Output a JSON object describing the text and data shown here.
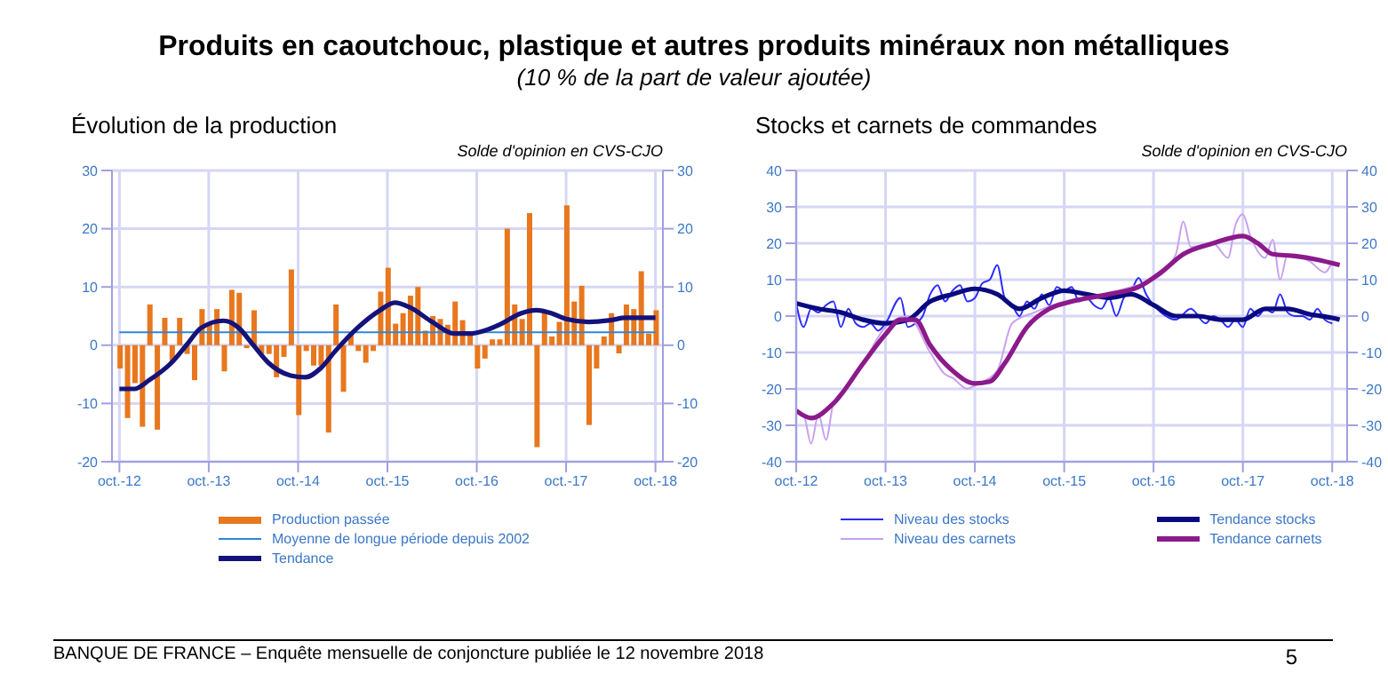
{
  "chart_data": [
    {
      "type": "other",
      "title": "Produits en caoutchouc, plastique et autres produits minéraux non métalliques",
      "subtitle": "(10 % de la part de valeur ajoutée)",
      "annotations": [
        "BANQUE DE FRANCE –  Enquête mensuelle de conjoncture publiée le 12 novembre 2018",
        "5"
      ]
    },
    {
      "type": "bar",
      "title": "Évolution de la production",
      "subtitle": "Solde d'opinion en CVS-CJO",
      "grid": true,
      "legend": "bottom",
      "marker": "none",
      "x": [
        "2012-10",
        "2012-11",
        "2012-12",
        "2013-01",
        "2013-02",
        "2013-03",
        "2013-04",
        "2013-05",
        "2013-06",
        "2013-07",
        "2013-08",
        "2013-09",
        "2013-10",
        "2013-11",
        "2013-12",
        "2014-01",
        "2014-02",
        "2014-03",
        "2014-04",
        "2014-05",
        "2014-06",
        "2014-07",
        "2014-08",
        "2014-09",
        "2014-10",
        "2014-11",
        "2014-12",
        "2015-01",
        "2015-02",
        "2015-03",
        "2015-04",
        "2015-05",
        "2015-06",
        "2015-07",
        "2015-08",
        "2015-09",
        "2015-10",
        "2015-11",
        "2015-12",
        "2016-01",
        "2016-02",
        "2016-03",
        "2016-04",
        "2016-05",
        "2016-06",
        "2016-07",
        "2016-08",
        "2016-09",
        "2016-10",
        "2016-11",
        "2016-12",
        "2017-01",
        "2017-02",
        "2017-03",
        "2017-04",
        "2017-05",
        "2017-06",
        "2017-07",
        "2017-08",
        "2017-09",
        "2017-10",
        "2017-11",
        "2017-12",
        "2018-01",
        "2018-02",
        "2018-03",
        "2018-04",
        "2018-05",
        "2018-06",
        "2018-07",
        "2018-08",
        "2018-09",
        "2018-10"
      ],
      "xlim": [
        "2012-09",
        "2018-11"
      ],
      "xticks": [
        {
          "value": "2012-10",
          "label": "oct.-12"
        },
        {
          "value": "2013-10",
          "label": "oct.-13"
        },
        {
          "value": "2014-10",
          "label": "oct.-14"
        },
        {
          "value": "2015-10",
          "label": "oct.-15"
        },
        {
          "value": "2016-10",
          "label": "oct.-16"
        },
        {
          "value": "2017-10",
          "label": "oct.-17"
        },
        {
          "value": "2018-10",
          "label": "oct.-18"
        }
      ],
      "ylim": [
        -20,
        30
      ],
      "yticks": [
        -20,
        -10,
        0,
        10,
        20,
        30
      ],
      "y2lim": [
        -20,
        30
      ],
      "y2ticks": [
        -20,
        -10,
        0,
        10,
        20,
        30
      ],
      "series": [
        {
          "name": "Production passée",
          "type": "bar",
          "color": "#e8771e",
          "values": [
            -4,
            -12.5,
            -6.5,
            -14,
            7,
            -14.5,
            4.7,
            -3,
            4.7,
            -1.5,
            -6,
            6.2,
            3.5,
            6.2,
            -4.5,
            9.5,
            9,
            -0.5,
            6,
            -1.5,
            -1.5,
            -5.5,
            -2,
            13,
            -12,
            -1,
            -3.5,
            -3.5,
            -15,
            7,
            -8,
            2,
            -1,
            -3,
            -1,
            9.2,
            13.3,
            3.7,
            5.5,
            8.5,
            10,
            2.5,
            5,
            4.5,
            3.5,
            7.5,
            4.3,
            2,
            -4,
            -2.3,
            1,
            1,
            20,
            7,
            4.5,
            22.7,
            -17.5,
            6,
            1.5,
            4,
            24,
            7.5,
            10.2,
            -13.7,
            -4,
            1.5,
            5.5,
            -1.4,
            7,
            6.2,
            12.7,
            2,
            6
          ]
        },
        {
          "name": "Moyenne de longue période depuis 2002",
          "type": "line",
          "color": "#2f86d6",
          "x": [
            "2012-10",
            "2018-10"
          ],
          "values": [
            2.2,
            2.2
          ]
        },
        {
          "name": "Tendance",
          "type": "line",
          "color": "#14137a",
          "x": [
            "2012-10",
            "2012-12",
            "2013-02",
            "2013-05",
            "2013-07",
            "2013-09",
            "2013-12",
            "2014-02",
            "2014-04",
            "2014-06",
            "2014-09",
            "2014-11",
            "2015-01",
            "2015-03",
            "2015-06",
            "2015-09",
            "2015-11",
            "2016-01",
            "2016-04",
            "2016-07",
            "2016-09",
            "2016-11",
            "2017-01",
            "2017-04",
            "2017-06",
            "2017-08",
            "2017-10",
            "2018-01",
            "2018-04",
            "2018-06",
            "2018-10"
          ],
          "values": [
            -7.5,
            -7.5,
            -6,
            -3,
            0,
            3,
            4.2,
            3,
            0,
            -3,
            -5.2,
            -5.5,
            -4,
            -1,
            3,
            6,
            7.3,
            6.5,
            4,
            2,
            2,
            2.5,
            3.5,
            5.5,
            6,
            5.5,
            4.5,
            4,
            4.3,
            4.7,
            4.7
          ]
        }
      ]
    },
    {
      "type": "line",
      "title": "Stocks et carnets de commandes",
      "subtitle": "Solde d'opinion en CVS-CJO",
      "grid": true,
      "legend": "bottom",
      "marker": "none",
      "xlim": [
        "2012-10",
        "2018-12"
      ],
      "xticks": [
        {
          "value": "2012-10",
          "label": "oct.-12"
        },
        {
          "value": "2013-10",
          "label": "oct.-13"
        },
        {
          "value": "2014-10",
          "label": "oct.-14"
        },
        {
          "value": "2015-10",
          "label": "oct.-15"
        },
        {
          "value": "2016-10",
          "label": "oct.-16"
        },
        {
          "value": "2017-10",
          "label": "oct.-17"
        },
        {
          "value": "2018-10",
          "label": "oct.-18"
        }
      ],
      "ylim": [
        -40,
        40
      ],
      "yticks": [
        -40,
        -30,
        -20,
        -10,
        0,
        10,
        20,
        30,
        40
      ],
      "y2lim": [
        -40,
        40
      ],
      "y2ticks": [
        -40,
        -30,
        -20,
        -10,
        0,
        10,
        20,
        30,
        40
      ],
      "series": [
        {
          "name": "Niveau des stocks",
          "color": "#2b2bff",
          "x": [
            "2012-10",
            "2012-11",
            "2012-12",
            "2013-01",
            "2013-02",
            "2013-03",
            "2013-04",
            "2013-05",
            "2013-06",
            "2013-07",
            "2013-08",
            "2013-09",
            "2013-10",
            "2013-12",
            "2014-01",
            "2014-02",
            "2014-03",
            "2014-04",
            "2014-05",
            "2014-06",
            "2014-07",
            "2014-08",
            "2014-09",
            "2014-10",
            "2014-11",
            "2014-12",
            "2015-01",
            "2015-02",
            "2015-03",
            "2015-04",
            "2015-05",
            "2015-06",
            "2015-07",
            "2015-08",
            "2015-09",
            "2015-10",
            "2015-11",
            "2015-12",
            "2016-01",
            "2016-02",
            "2016-03",
            "2016-04",
            "2016-05",
            "2016-06",
            "2016-07",
            "2016-08",
            "2016-09",
            "2016-10",
            "2016-11",
            "2017-01",
            "2017-03",
            "2017-05",
            "2017-06",
            "2017-07",
            "2017-08",
            "2017-09",
            "2017-10",
            "2017-11",
            "2017-12",
            "2018-01",
            "2018-02",
            "2018-03",
            "2018-04",
            "2018-05",
            "2018-06",
            "2018-07",
            "2018-08",
            "2018-09",
            "2018-10"
          ],
          "values": [
            3.5,
            -3,
            2,
            1,
            3,
            4,
            -3,
            2,
            -2,
            -3,
            -2,
            -4,
            -2,
            5,
            -3,
            -2,
            0,
            6,
            8.5,
            4,
            7,
            8.5,
            4,
            5,
            9,
            10,
            14,
            5,
            3,
            0,
            4,
            2,
            6,
            3,
            8,
            7,
            8,
            4,
            5,
            3,
            2,
            5,
            0,
            5,
            7,
            10.5,
            6,
            3,
            1,
            -1,
            2,
            -2,
            0,
            -1,
            -3,
            -1,
            -3,
            2,
            0,
            2,
            1,
            6,
            1,
            0,
            0,
            -1,
            2,
            -1,
            -2
          ]
        },
        {
          "name": "Niveau des carnets",
          "color": "#c9a0f0",
          "x": [
            "2012-10",
            "2012-11",
            "2012-12",
            "2013-01",
            "2013-02",
            "2013-03",
            "2013-05",
            "2013-07",
            "2013-10",
            "2014-01",
            "2014-04",
            "2014-06",
            "2014-07",
            "2014-09",
            "2014-10",
            "2015-01",
            "2015-03",
            "2015-06",
            "2015-10",
            "2016-01",
            "2016-07",
            "2016-10",
            "2017-01",
            "2017-02",
            "2017-03",
            "2017-06",
            "2017-08",
            "2017-09",
            "2017-10",
            "2017-11",
            "2018-01",
            "2018-02",
            "2018-03",
            "2018-04",
            "2018-07",
            "2018-09",
            "2018-10"
          ],
          "values": [
            -26,
            -27,
            -35,
            -27,
            -34,
            -24,
            -19,
            -13,
            -3,
            0,
            -10,
            -16,
            -17,
            -20,
            -19,
            -15,
            -2,
            1,
            4,
            5,
            8,
            10,
            17,
            26,
            19,
            20,
            16,
            25,
            28,
            22,
            16,
            21,
            10,
            17,
            15,
            12,
            15
          ]
        },
        {
          "name": "Tendance stocks",
          "color": "#0a0a80",
          "x": [
            "2012-10",
            "2013-01",
            "2013-04",
            "2013-07",
            "2013-10",
            "2014-01",
            "2014-04",
            "2014-07",
            "2014-10",
            "2015-01",
            "2015-04",
            "2015-07",
            "2015-10",
            "2016-01",
            "2016-04",
            "2016-07",
            "2016-10",
            "2017-01",
            "2017-04",
            "2017-07",
            "2017-10",
            "2018-01",
            "2018-04",
            "2018-07",
            "2018-10",
            "2018-11"
          ],
          "values": [
            3.5,
            2,
            1,
            -1,
            -2,
            -1,
            4,
            6,
            7.5,
            6,
            2,
            5,
            7,
            6,
            5,
            6,
            3,
            0,
            0,
            -1,
            -1,
            2,
            2,
            0.5,
            -0.5,
            -1
          ]
        },
        {
          "name": "Tendance carnets",
          "color": "#8b1a8b",
          "x": [
            "2012-10",
            "2012-12",
            "2013-03",
            "2013-07",
            "2013-10",
            "2013-12",
            "2014-02",
            "2014-04",
            "2014-07",
            "2014-10",
            "2014-12",
            "2015-02",
            "2015-05",
            "2015-08",
            "2015-11",
            "2016-04",
            "2016-08",
            "2016-11",
            "2017-02",
            "2017-06",
            "2017-10",
            "2017-12",
            "2018-02",
            "2018-05",
            "2018-08",
            "2018-11"
          ],
          "values": [
            -26,
            -28,
            -24,
            -13,
            -5,
            -1,
            -1,
            -8,
            -15,
            -18.5,
            -18,
            -13,
            -3,
            2,
            4,
            6,
            8,
            12,
            17,
            20,
            22,
            20,
            17,
            16.5,
            15.5,
            14
          ]
        }
      ]
    }
  ]
}
